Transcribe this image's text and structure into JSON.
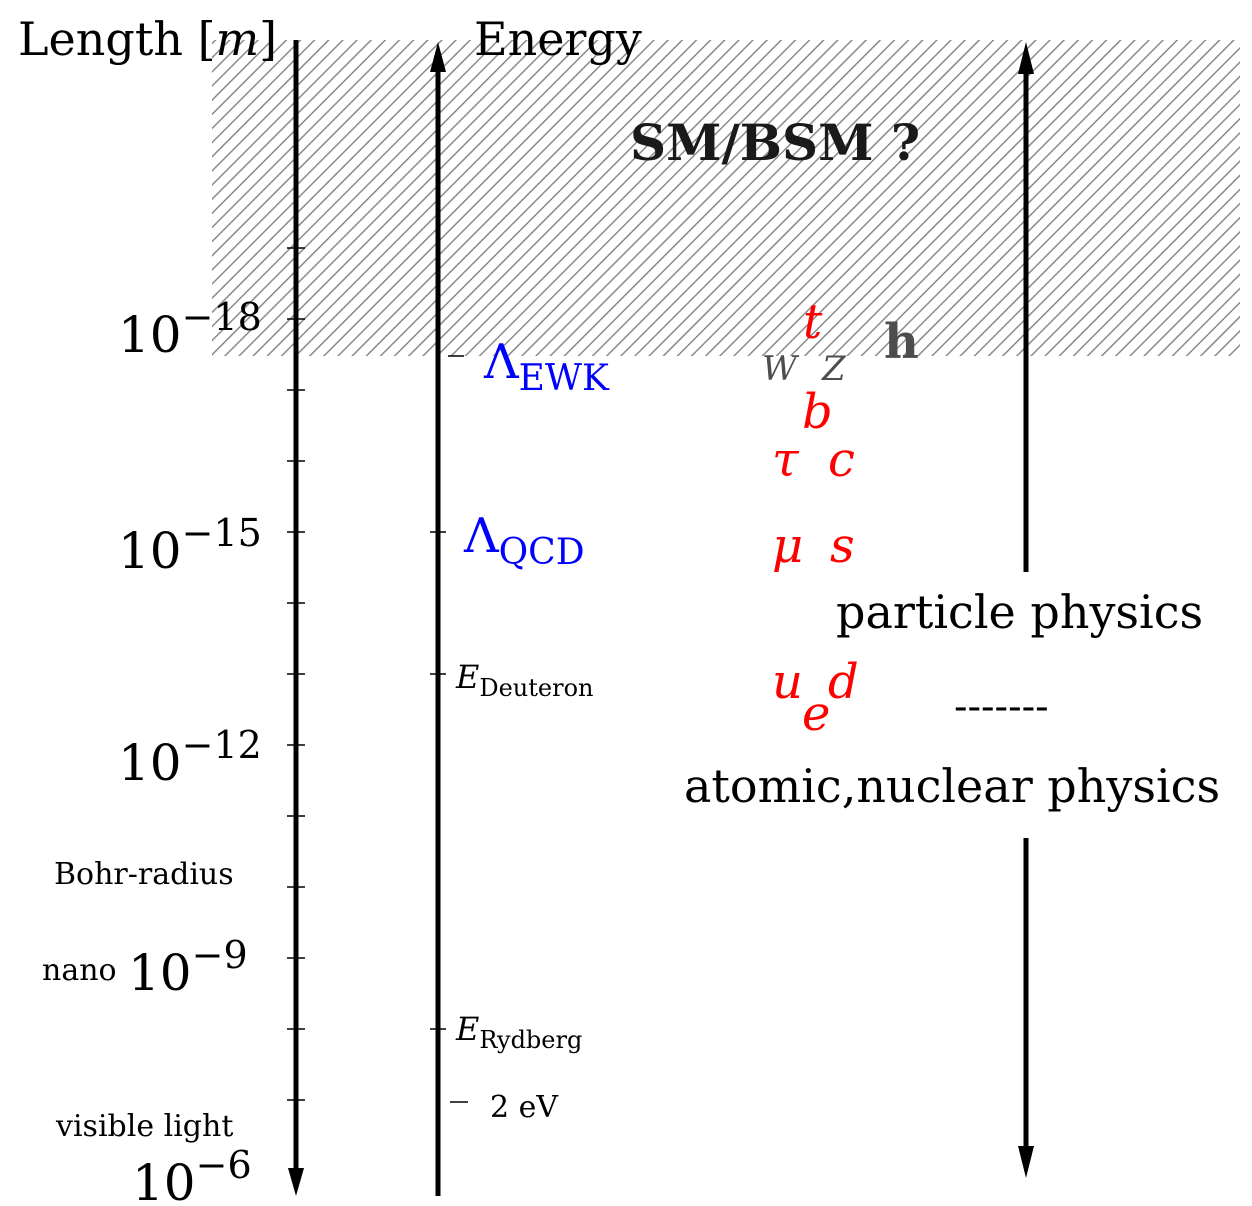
{
  "header": {
    "length_prefix": "Length [",
    "length_unit": "m",
    "length_suffix": "]",
    "energy": "Energy"
  },
  "length_axis": {
    "tick_base": "10",
    "labels": [
      {
        "exp": "−18"
      },
      {
        "exp": "−15"
      },
      {
        "exp": "−12"
      },
      {
        "exp": "−9"
      },
      {
        "exp": "−6"
      }
    ],
    "annotations": {
      "nano": "nano",
      "bohr": "Bohr-radius",
      "visible": "visible light"
    }
  },
  "energy_axis": {
    "ewk_base": "Λ",
    "ewk_sub": "EWK",
    "qcd_base": "Λ",
    "qcd_sub": "QCD",
    "deuteron_base": "E",
    "deuteron_sub": "Deuteron",
    "rydberg_base": "E",
    "rydberg_sub": "Rydberg",
    "ev": "2 eV"
  },
  "region": {
    "label": "SM/BSM ?"
  },
  "particles": {
    "t": "t",
    "h": "h",
    "W": "W",
    "Z": "Z",
    "b": "b",
    "tau": "τ",
    "c": "c",
    "mu": "μ",
    "s": "s",
    "u": "u",
    "d": "d",
    "e": "e"
  },
  "physics": {
    "particle": "particle physics",
    "dashes": "-------",
    "atomic": "atomic,nuclear physics"
  },
  "colors": {
    "scale": "#0000ff",
    "fermion": "#ff0000",
    "boson": "#4d4d4d",
    "hatch": "#8a8a8a"
  }
}
